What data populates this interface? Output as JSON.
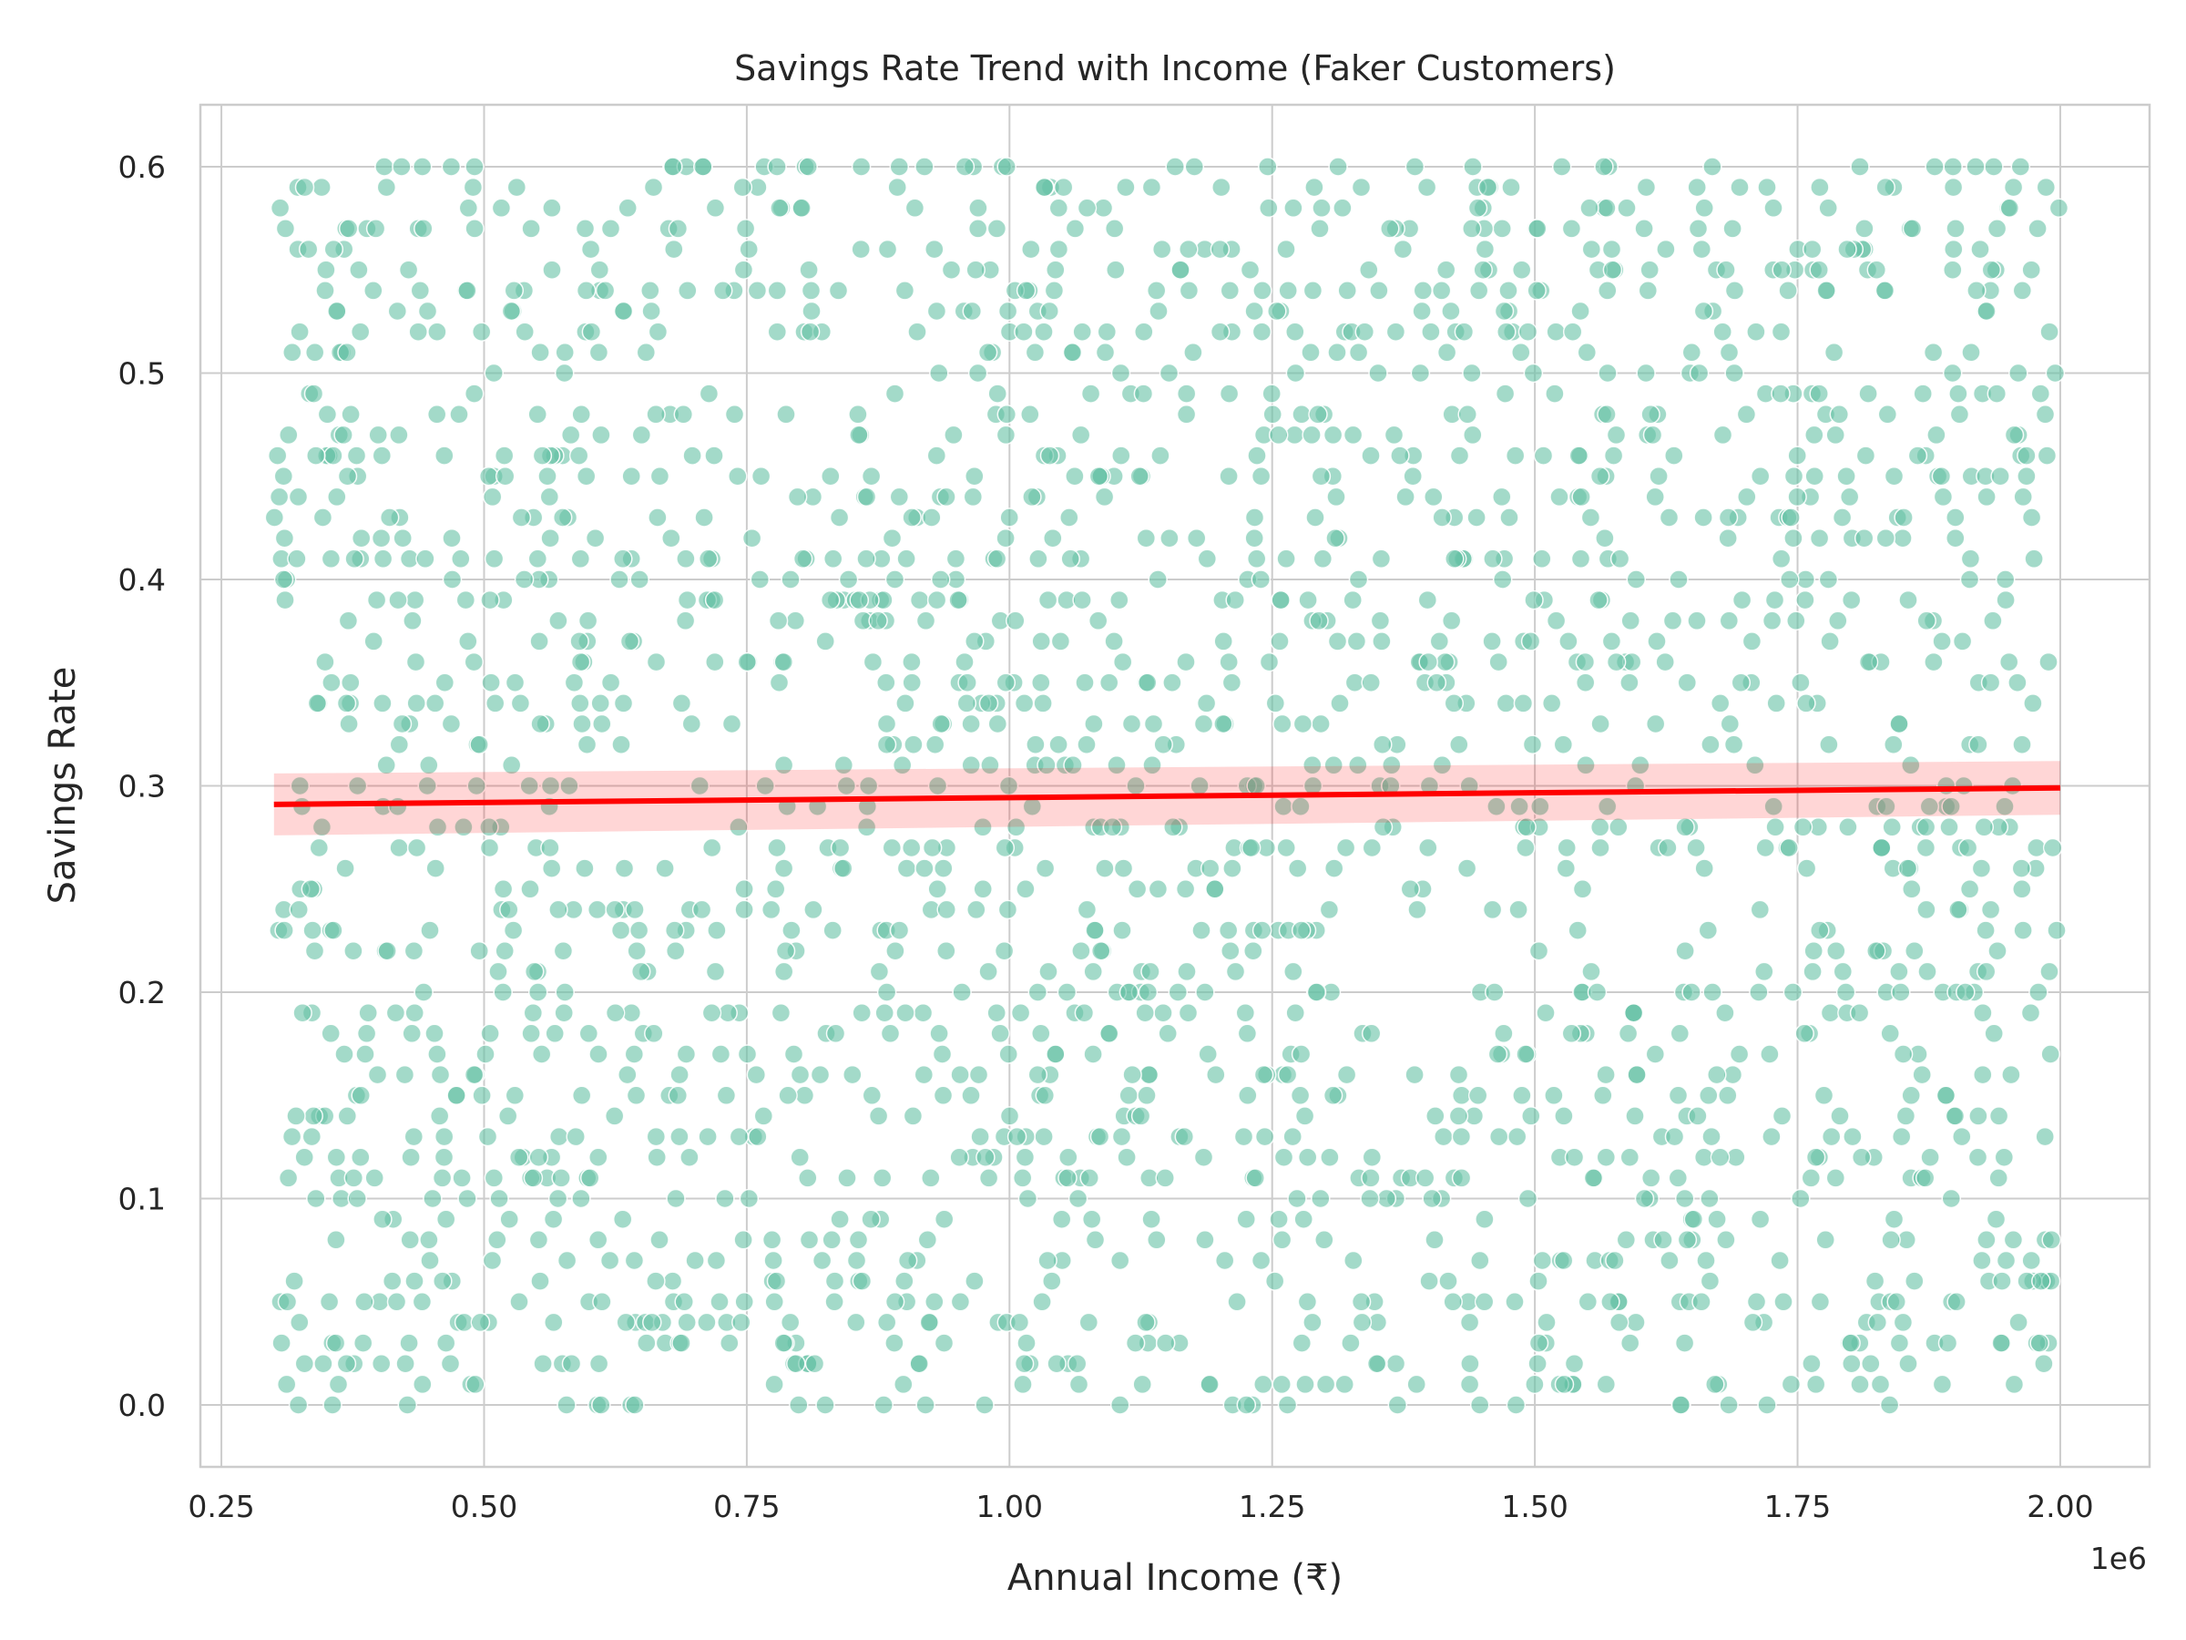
{
  "chart_data": {
    "type": "scatter",
    "title": "Savings Rate Trend with Income (Faker Customers)",
    "xlabel": "Annual Income (₹)",
    "ylabel": "Savings Rate",
    "x_offset_label": "1e6",
    "xlim": [
      230000,
      2085000
    ],
    "ylim": [
      -0.03,
      0.63
    ],
    "x_ticks": [
      250000,
      500000,
      750000,
      1000000,
      1250000,
      1500000,
      1750000,
      2000000
    ],
    "x_tick_labels": [
      "0.25",
      "0.50",
      "0.75",
      "1.00",
      "1.25",
      "1.50",
      "1.75",
      "2.00"
    ],
    "y_ticks": [
      0.0,
      0.1,
      0.2,
      0.3,
      0.4,
      0.5,
      0.6
    ],
    "y_tick_labels": [
      "0.0",
      "0.1",
      "0.2",
      "0.3",
      "0.4",
      "0.5",
      "0.6"
    ],
    "grid": true,
    "series": [
      {
        "kind": "scatter",
        "color": "#66c2a5",
        "opacity": 0.6,
        "x_range": [
          300000,
          2000000
        ],
        "y_range": [
          0.0,
          0.6
        ],
        "y_step": 0.01,
        "count": 2000
      },
      {
        "kind": "regression",
        "color": "#ff0000",
        "band_color": "#ff0000",
        "x": [
          300000,
          2000000
        ],
        "y": [
          0.291,
          0.299
        ],
        "ci_half_width": [
          0.015,
          0.013
        ]
      }
    ]
  }
}
